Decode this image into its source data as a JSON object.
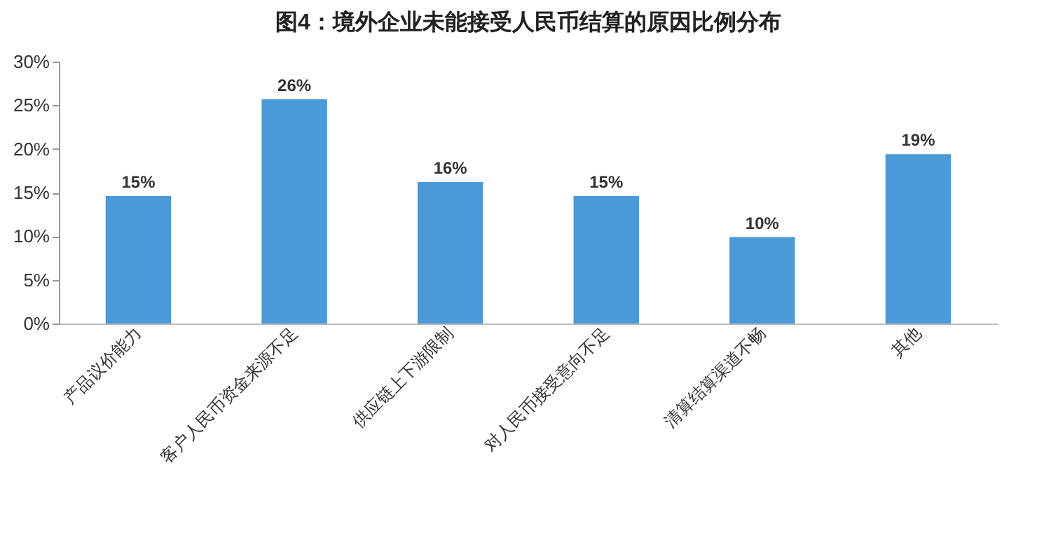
{
  "chart_data": {
    "type": "bar",
    "title": "图4：境外企业未能接受人民币结算的原因比例分布",
    "categories": [
      "产品议价能力",
      "客户人民币资金来源不足",
      "供应链上下游限制",
      "对人民币接受意向不足",
      "清算结算渠道不畅",
      "其他"
    ],
    "values": [
      14.6,
      25.7,
      16.2,
      14.6,
      9.9,
      19.4
    ],
    "value_labels": [
      "15%",
      "26%",
      "16%",
      "15%",
      "10%",
      "19%"
    ],
    "color": "#4a9ad9",
    "ylim": [
      0,
      30
    ],
    "yticks": [
      {
        "value": 0,
        "label": "0%"
      },
      {
        "value": 5,
        "label": "5%"
      },
      {
        "value": 10,
        "label": "10%"
      },
      {
        "value": 15,
        "label": "15%"
      },
      {
        "value": 20,
        "label": "20%"
      },
      {
        "value": 25,
        "label": "25%"
      },
      {
        "value": 30,
        "label": "30%"
      }
    ],
    "grid": false
  }
}
